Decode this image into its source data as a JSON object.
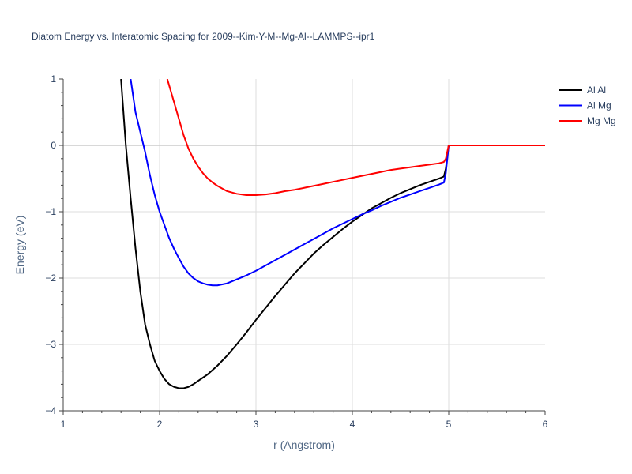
{
  "chart_data": {
    "type": "line",
    "title": "Diatom Energy vs. Interatomic Spacing for 2009--Kim-Y-M--Mg-Al--LAMMPS--ipr1",
    "xlabel": "r (Angstrom)",
    "ylabel": "Energy (eV)",
    "xlim": [
      1,
      6
    ],
    "ylim": [
      -4,
      1
    ],
    "x_ticks": [
      "1",
      "2",
      "3",
      "4",
      "5",
      "6"
    ],
    "y_ticks": [
      "1",
      "0",
      "−1",
      "−2",
      "−3",
      "−4"
    ],
    "grid": true,
    "legend_position": "top-right",
    "series": [
      {
        "name": "Al Al",
        "color": "#000000",
        "x": [
          1.6,
          1.65,
          1.7,
          1.75,
          1.8,
          1.85,
          1.9,
          1.95,
          2.0,
          2.05,
          2.1,
          2.15,
          2.2,
          2.25,
          2.3,
          2.35,
          2.4,
          2.45,
          2.5,
          2.6,
          2.7,
          2.8,
          2.9,
          3.0,
          3.1,
          3.2,
          3.3,
          3.4,
          3.5,
          3.6,
          3.7,
          3.8,
          3.9,
          4.0,
          4.1,
          4.2,
          4.3,
          4.4,
          4.5,
          4.6,
          4.7,
          4.8,
          4.9,
          4.95,
          4.97,
          5.0,
          5.1,
          5.5,
          6.0
        ],
        "y": [
          1.0,
          0.0,
          -0.8,
          -1.55,
          -2.2,
          -2.7,
          -3.0,
          -3.25,
          -3.4,
          -3.52,
          -3.6,
          -3.64,
          -3.66,
          -3.66,
          -3.64,
          -3.6,
          -3.55,
          -3.5,
          -3.45,
          -3.32,
          -3.17,
          -3.0,
          -2.82,
          -2.63,
          -2.45,
          -2.27,
          -2.1,
          -1.93,
          -1.78,
          -1.63,
          -1.5,
          -1.38,
          -1.26,
          -1.15,
          -1.05,
          -0.95,
          -0.87,
          -0.79,
          -0.72,
          -0.66,
          -0.6,
          -0.55,
          -0.5,
          -0.47,
          -0.35,
          0.0,
          0.0,
          0.0,
          0.0
        ]
      },
      {
        "name": "Al Mg",
        "color": "#0000ff",
        "x": [
          1.7,
          1.75,
          1.8,
          1.85,
          1.9,
          1.95,
          2.0,
          2.05,
          2.1,
          2.15,
          2.2,
          2.25,
          2.3,
          2.35,
          2.4,
          2.45,
          2.5,
          2.55,
          2.6,
          2.7,
          2.8,
          2.9,
          3.0,
          3.1,
          3.2,
          3.3,
          3.4,
          3.5,
          3.6,
          3.7,
          3.8,
          3.9,
          4.0,
          4.1,
          4.2,
          4.3,
          4.4,
          4.5,
          4.6,
          4.7,
          4.8,
          4.9,
          4.95,
          4.97,
          5.0,
          5.1,
          5.5,
          6.0
        ],
        "y": [
          1.0,
          0.5,
          0.2,
          -0.1,
          -0.45,
          -0.75,
          -1.0,
          -1.2,
          -1.4,
          -1.56,
          -1.7,
          -1.83,
          -1.93,
          -2.0,
          -2.05,
          -2.08,
          -2.1,
          -2.11,
          -2.11,
          -2.08,
          -2.02,
          -1.96,
          -1.89,
          -1.81,
          -1.73,
          -1.65,
          -1.57,
          -1.49,
          -1.41,
          -1.33,
          -1.25,
          -1.18,
          -1.11,
          -1.04,
          -0.98,
          -0.91,
          -0.85,
          -0.79,
          -0.74,
          -0.69,
          -0.64,
          -0.59,
          -0.56,
          -0.42,
          0.0,
          0.0,
          0.0,
          0.0
        ]
      },
      {
        "name": "Mg Mg",
        "color": "#ff0000",
        "x": [
          2.08,
          2.15,
          2.2,
          2.25,
          2.3,
          2.35,
          2.4,
          2.45,
          2.5,
          2.55,
          2.6,
          2.65,
          2.7,
          2.8,
          2.9,
          3.0,
          3.1,
          3.2,
          3.3,
          3.4,
          3.5,
          3.6,
          3.7,
          3.8,
          3.9,
          4.0,
          4.1,
          4.2,
          4.3,
          4.4,
          4.5,
          4.6,
          4.7,
          4.8,
          4.9,
          4.95,
          4.97,
          5.0,
          5.1,
          5.5,
          6.0
        ],
        "y": [
          1.0,
          0.65,
          0.4,
          0.15,
          -0.05,
          -0.2,
          -0.32,
          -0.42,
          -0.5,
          -0.56,
          -0.61,
          -0.65,
          -0.69,
          -0.73,
          -0.75,
          -0.75,
          -0.74,
          -0.72,
          -0.69,
          -0.67,
          -0.64,
          -0.61,
          -0.58,
          -0.55,
          -0.52,
          -0.49,
          -0.46,
          -0.43,
          -0.4,
          -0.37,
          -0.35,
          -0.33,
          -0.31,
          -0.29,
          -0.27,
          -0.25,
          -0.2,
          0.0,
          0.0,
          0.0,
          0.0
        ]
      }
    ]
  }
}
